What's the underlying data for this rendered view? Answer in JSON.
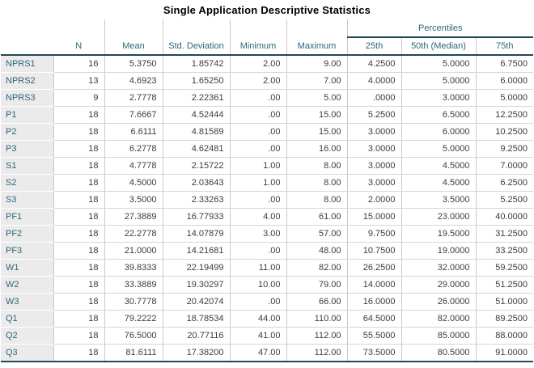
{
  "title": "Single Application Descriptive Statistics",
  "table": {
    "group_header": "Percentiles",
    "col_headers": [
      "N",
      "Mean",
      "Std. Deviation",
      "Minimum",
      "Maximum",
      "25th",
      "50th (Median)",
      "75th"
    ],
    "rows": [
      {
        "label": "NPRS1",
        "values": [
          "16",
          "5.3750",
          "1.85742",
          "2.00",
          "9.00",
          "4.2500",
          "5.0000",
          "6.7500"
        ]
      },
      {
        "label": "NPRS2",
        "values": [
          "13",
          "4.6923",
          "1.65250",
          "2.00",
          "7.00",
          "4.0000",
          "5.0000",
          "6.0000"
        ]
      },
      {
        "label": "NPRS3",
        "values": [
          "9",
          "2.7778",
          "2.22361",
          ".00",
          "5.00",
          ".0000",
          "3.0000",
          "5.0000"
        ]
      },
      {
        "label": "P1",
        "values": [
          "18",
          "7.6667",
          "4.52444",
          ".00",
          "15.00",
          "5.2500",
          "6.5000",
          "12.2500"
        ]
      },
      {
        "label": "P2",
        "values": [
          "18",
          "6.6111",
          "4.81589",
          ".00",
          "15.00",
          "3.0000",
          "6.0000",
          "10.2500"
        ]
      },
      {
        "label": "P3",
        "values": [
          "18",
          "6.2778",
          "4.62481",
          ".00",
          "16.00",
          "3.0000",
          "5.0000",
          "9.2500"
        ]
      },
      {
        "label": "S1",
        "values": [
          "18",
          "4.7778",
          "2.15722",
          "1.00",
          "8.00",
          "3.0000",
          "4.5000",
          "7.0000"
        ]
      },
      {
        "label": "S2",
        "values": [
          "18",
          "4.5000",
          "2.03643",
          "1.00",
          "8.00",
          "3.0000",
          "4.5000",
          "6.2500"
        ]
      },
      {
        "label": "S3",
        "values": [
          "18",
          "3.5000",
          "2.33263",
          ".00",
          "8.00",
          "2.0000",
          "3.5000",
          "5.2500"
        ]
      },
      {
        "label": "PF1",
        "values": [
          "18",
          "27.3889",
          "16.77933",
          "4.00",
          "61.00",
          "15.0000",
          "23.0000",
          "40.0000"
        ]
      },
      {
        "label": "PF2",
        "values": [
          "18",
          "22.2778",
          "14.07879",
          "3.00",
          "57.00",
          "9.7500",
          "19.5000",
          "31.2500"
        ]
      },
      {
        "label": "PF3",
        "values": [
          "18",
          "21.0000",
          "14.21681",
          ".00",
          "48.00",
          "10.7500",
          "19.0000",
          "33.2500"
        ]
      },
      {
        "label": "W1",
        "values": [
          "18",
          "39.8333",
          "22.19499",
          "11.00",
          "82.00",
          "26.2500",
          "32.0000",
          "59.2500"
        ]
      },
      {
        "label": "W2",
        "values": [
          "18",
          "33.3889",
          "19.30297",
          "10.00",
          "79.00",
          "14.0000",
          "29.0000",
          "51.2500"
        ]
      },
      {
        "label": "W3",
        "values": [
          "18",
          "30.7778",
          "20.42074",
          ".00",
          "66.00",
          "16.0000",
          "26.0000",
          "51.0000"
        ]
      },
      {
        "label": "Q1",
        "values": [
          "18",
          "79.2222",
          "18.78534",
          "44.00",
          "110.00",
          "64.5000",
          "82.0000",
          "89.2500"
        ]
      },
      {
        "label": "Q2",
        "values": [
          "18",
          "76.5000",
          "20.77116",
          "41.00",
          "112.00",
          "55.5000",
          "85.0000",
          "88.0000"
        ]
      },
      {
        "label": "Q3",
        "values": [
          "18",
          "81.6111",
          "17.38200",
          "47.00",
          "112.00",
          "73.5000",
          "80.5000",
          "91.0000"
        ]
      }
    ]
  },
  "colors": {
    "header_text": "#2e6579",
    "row_label_text": "#2e6579",
    "stub_background": "#ebebeb",
    "heavy_border": "#20485a",
    "light_border": "#c9c9c9",
    "row_border": "#d6d6d6",
    "data_text": "#3c3c3c"
  }
}
